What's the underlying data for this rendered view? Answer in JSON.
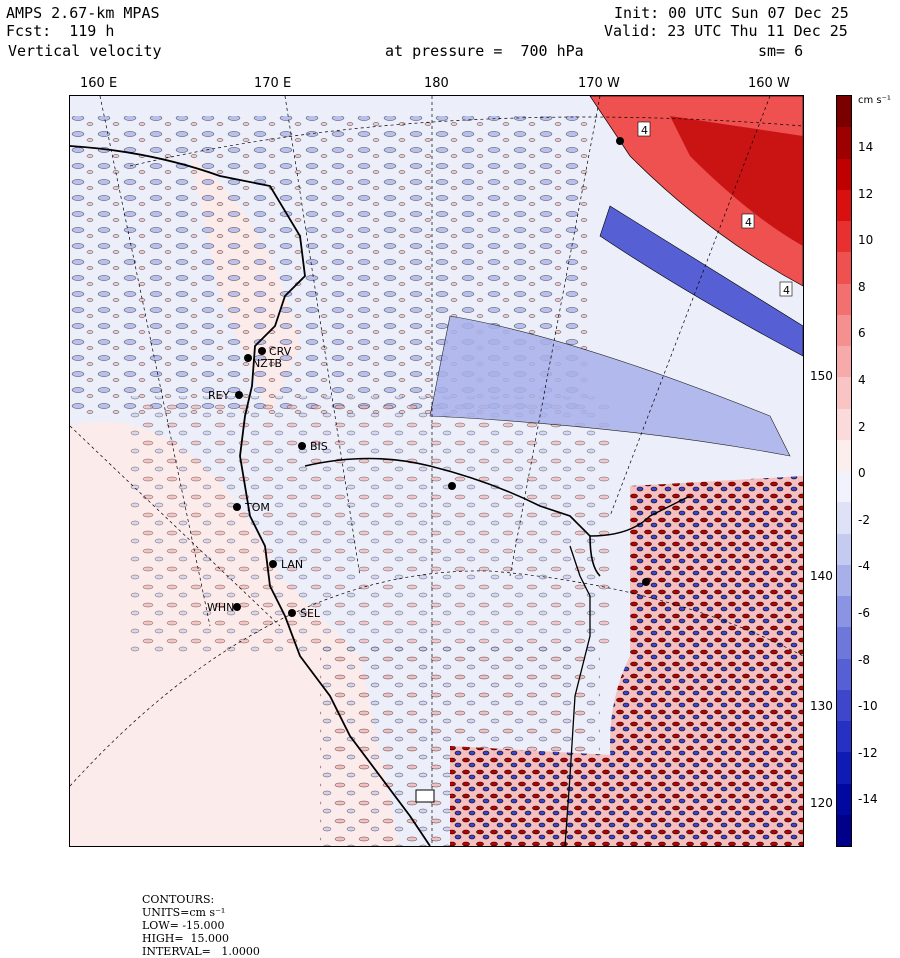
{
  "header": {
    "model": "AMPS 2.67-km MPAS",
    "forecast": "Fcst:  119 h",
    "field": "Vertical velocity",
    "init": "Init: 00 UTC Sun 07 Dec 25",
    "valid": "Valid: 23 UTC Thu 11 Dec 25",
    "level": "at pressure =  700 hPa",
    "smooth": "sm= 6"
  },
  "lon_labels": [
    "160 E",
    "170 E",
    "180",
    "170 W",
    "160 W"
  ],
  "lat_labels": [
    "150 W",
    "140 W",
    "130 W",
    "120 W"
  ],
  "stations": [
    {
      "code": "CRV"
    },
    {
      "code": "NZTB"
    },
    {
      "code": "REY"
    },
    {
      "code": "BIS"
    },
    {
      "code": "TOM"
    },
    {
      "code": "LAN"
    },
    {
      "code": "WHN"
    },
    {
      "code": "SEL"
    },
    {
      "code": "4"
    }
  ],
  "colorbar": {
    "units": "cm s⁻¹",
    "ticks": [
      "14",
      "12",
      "10",
      "8",
      "6",
      "4",
      "2",
      "0",
      "-2",
      "-4",
      "-6",
      "-8",
      "-10",
      "-12",
      "-14"
    ],
    "colors": [
      "#7a0000",
      "#9c0000",
      "#be0000",
      "#d81010",
      "#e83030",
      "#ef5050",
      "#f27070",
      "#f49090",
      "#f6aaaa",
      "#f8c4c4",
      "#fadada",
      "#fdeeee",
      "#f1f2fb",
      "#dfe2f6",
      "#c4caf0",
      "#a8b0ea",
      "#8a94e2",
      "#6e78da",
      "#5660d4",
      "#3e46cc",
      "#2630c2",
      "#101ab4",
      "#0008a0",
      "#00008a"
    ]
  },
  "footer": {
    "contours_label": "CONTOURS:",
    "units": "UNITS=cm s⁻¹",
    "low": "LOW= -15.000",
    "high": "HIGH=  15.000",
    "interval": "INTERVAL=   1.0000"
  }
}
